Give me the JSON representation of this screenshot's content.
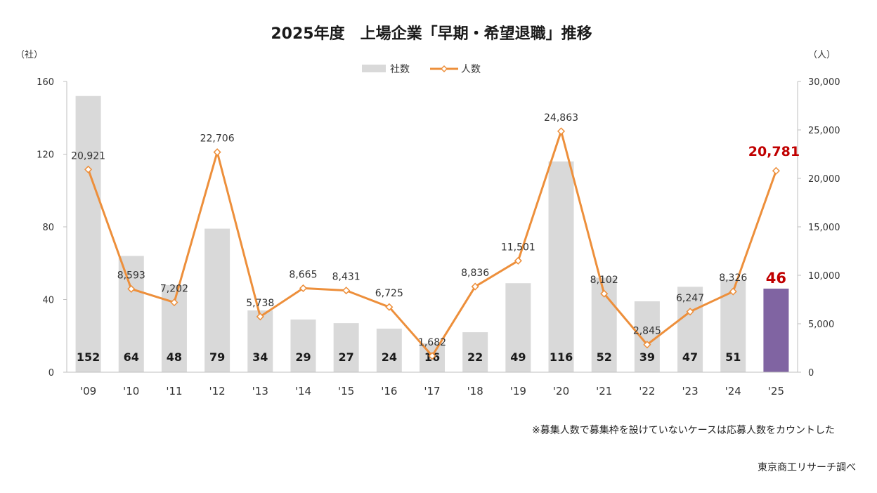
{
  "chart_data": {
    "type": "bar",
    "title": "2025年度　上場企業「早期・希望退職」推移",
    "categories": [
      "'09",
      "'10",
      "'11",
      "'12",
      "'13",
      "'14",
      "'15",
      "'16",
      "'17",
      "'18",
      "'19",
      "'20",
      "'21",
      "'22",
      "'23",
      "'24",
      "'25"
    ],
    "series": [
      {
        "name": "社数",
        "type": "bar",
        "axis": "left",
        "color": "#d9d9d9",
        "highlight_color": "#8064a2",
        "values": [
          152,
          64,
          48,
          79,
          34,
          29,
          27,
          24,
          16,
          22,
          49,
          116,
          52,
          39,
          47,
          51,
          46
        ],
        "labels": [
          "152",
          "64",
          "48",
          "79",
          "34",
          "29",
          "27",
          "24",
          "16",
          "22",
          "49",
          "116",
          "52",
          "39",
          "47",
          "51",
          "46"
        ]
      },
      {
        "name": "人数",
        "type": "line",
        "axis": "right",
        "color": "#ed8f3b",
        "values": [
          20921,
          8593,
          7202,
          22706,
          5738,
          8665,
          8431,
          6725,
          1682,
          8836,
          11501,
          24863,
          8102,
          2845,
          6247,
          8326,
          20781
        ],
        "labels": [
          "20,921",
          "8,593",
          "7,202",
          "22,706",
          "5,738",
          "8,665",
          "8,431",
          "6,725",
          "1,682",
          "8,836",
          "11,501",
          "24,863",
          "8,102",
          "2,845",
          "6,247",
          "8,326",
          "20,781"
        ]
      }
    ],
    "left_axis": {
      "unit": "（社）",
      "ylim": [
        0,
        160
      ],
      "ticks": [
        0,
        40,
        80,
        120,
        160
      ],
      "tick_labels": [
        "0",
        "40",
        "80",
        "120",
        "160"
      ]
    },
    "right_axis": {
      "unit": "（人）",
      "ylim": [
        0,
        30000
      ],
      "ticks": [
        0,
        5000,
        10000,
        15000,
        20000,
        25000,
        30000
      ],
      "tick_labels": [
        "0",
        "5,000",
        "10,000",
        "15,000",
        "20,000",
        "25,000",
        "30,000"
      ]
    },
    "legend": {
      "position": "top-center",
      "items": [
        "社数",
        "人数"
      ]
    },
    "highlight": {
      "index": 16,
      "color": "#c00000"
    },
    "grid": false
  },
  "footnote": "※募集人数で募集枠を設けていないケースは応募人数をカウントした",
  "source": "東京商工リサーチ調べ"
}
